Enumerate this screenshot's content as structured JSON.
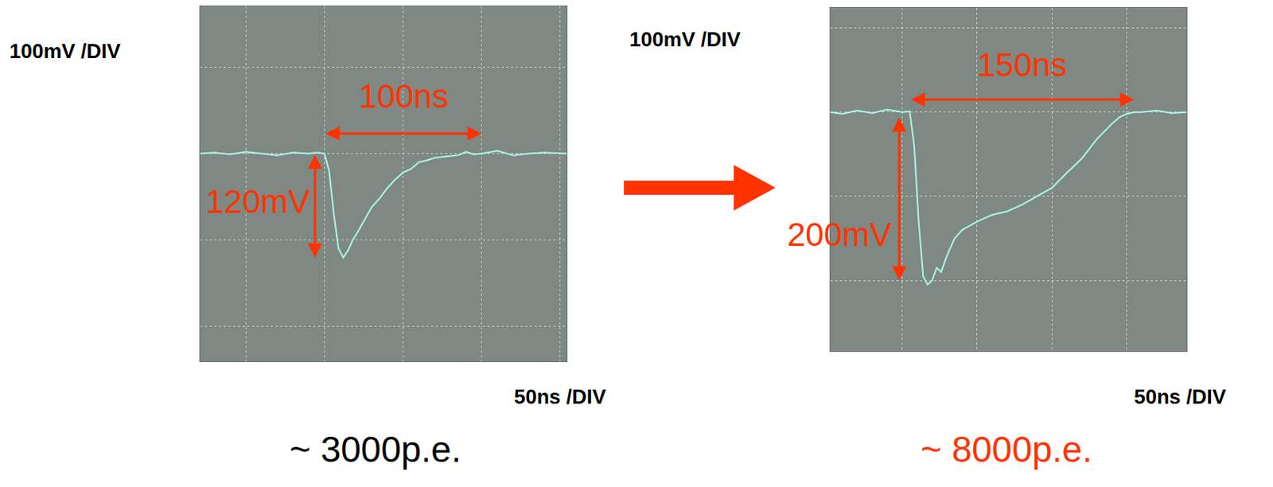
{
  "chart_data": [
    {
      "type": "line",
      "x_label": "50ns /DIV",
      "y_label": "100mV /DIV",
      "caption": {
        "text": "~ 3000p.e.",
        "color": "#000000"
      },
      "x": [
        -79,
        -70,
        -60,
        -50,
        -40,
        -30,
        -20,
        -10,
        -5,
        0,
        3,
        6,
        9,
        12,
        15,
        18,
        22,
        26,
        30,
        35,
        40,
        45,
        50,
        55,
        60,
        65,
        70,
        75,
        80,
        85,
        90,
        95,
        100,
        110,
        120,
        130,
        140,
        154
      ],
      "values": [
        0,
        1,
        -1,
        2,
        0,
        -2,
        1,
        0,
        1,
        0,
        -20,
        -70,
        -110,
        -120,
        -112,
        -100,
        -88,
        -75,
        -62,
        -52,
        -40,
        -30,
        -22,
        -18,
        -10,
        -8,
        -5,
        -4,
        -3,
        -2,
        2,
        -1,
        0,
        3,
        -2,
        0,
        1,
        0
      ],
      "color": "#a9f5e6",
      "xlim": [
        -79,
        154
      ],
      "xticks": [
        -50,
        0,
        50,
        100,
        150
      ],
      "ylim": [
        -240,
        170
      ],
      "yticks": [
        -200,
        -100,
        0,
        100
      ],
      "grid": true,
      "tick_labels": false,
      "annotations": [
        {
          "text": "100ns",
          "color": "#ff3300",
          "text_x": 50,
          "text_y": 66,
          "from": [
            0,
            23
          ],
          "to": [
            100,
            23
          ]
        },
        {
          "text": "120mV",
          "color": "#ff3300",
          "text_x": -8,
          "text_y": -55,
          "from": [
            -6,
            0
          ],
          "to": [
            -6,
            -120
          ]
        }
      ]
    },
    {
      "type": "line",
      "x_label": "50ns /DIV",
      "y_label": "100mV /DIV",
      "caption": {
        "text": "~ 8000p.e.",
        "color": "#ff3300"
      },
      "x": [
        -98,
        -90,
        -80,
        -70,
        -60,
        -50,
        -45,
        -42,
        -39,
        -36,
        -33,
        -30,
        -27,
        -24,
        -20,
        -15,
        -10,
        -5,
        0,
        10,
        20,
        30,
        40,
        50,
        60,
        70,
        80,
        90,
        95,
        100,
        105,
        110,
        120,
        130,
        140
      ],
      "values": [
        0,
        -2,
        2,
        -1,
        3,
        0,
        1,
        -40,
        -130,
        -195,
        -205,
        -200,
        -185,
        -190,
        -170,
        -150,
        -140,
        -135,
        -130,
        -122,
        -118,
        -110,
        -100,
        -90,
        -72,
        -55,
        -32,
        -14,
        -6,
        -2,
        0,
        0,
        2,
        -1,
        0
      ],
      "color": "#a9f5e6",
      "xlim": [
        -98,
        140
      ],
      "xticks": [
        -50,
        0,
        50,
        100
      ],
      "ylim": [
        -284,
        124
      ],
      "yticks": [
        -200,
        -100,
        0,
        100
      ],
      "grid": true,
      "tick_labels": false,
      "annotations": [
        {
          "text": "150ns",
          "color": "#ff3300",
          "text_x": 30,
          "text_y": 56,
          "from": [
            -45,
            15
          ],
          "to": [
            105,
            15
          ]
        },
        {
          "text": "200mV",
          "color": "#ff3300",
          "text_x": -56,
          "text_y": -145,
          "from": [
            -52,
            -5
          ],
          "to": [
            -52,
            -200
          ]
        }
      ]
    }
  ]
}
